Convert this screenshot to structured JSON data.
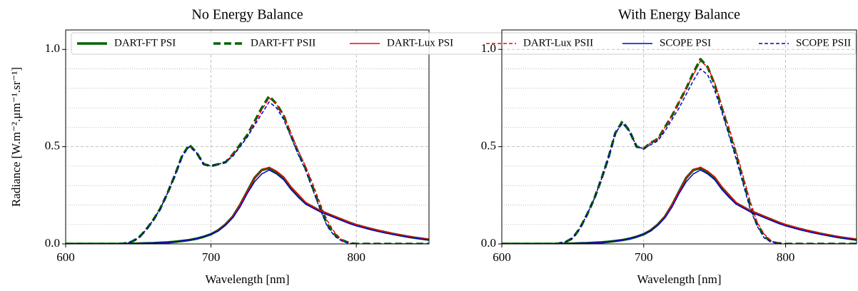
{
  "chart_data": [
    {
      "type": "line",
      "title": "No Energy Balance",
      "xlabel": "Wavelength [nm]",
      "ylabel": "Radiance [W.m⁻².μm⁻¹.sr⁻¹]",
      "xlim": [
        600,
        850
      ],
      "ylim": [
        0,
        1.1
      ],
      "xticks": [
        600,
        700,
        800
      ],
      "yticks": [
        {
          "value": 0,
          "label": "0.0"
        },
        {
          "value": 0.5,
          "label": "0.5"
        },
        {
          "value": 1.0,
          "label": "1.0"
        }
      ],
      "yminorticks": [
        0.1,
        0.2,
        0.3,
        0.4,
        0.6,
        0.7,
        0.8,
        0.9
      ],
      "grid": true,
      "legend": "upper center",
      "x": [
        600,
        605,
        610,
        615,
        620,
        625,
        630,
        635,
        640,
        645,
        650,
        655,
        660,
        665,
        670,
        675,
        680,
        685,
        690,
        695,
        700,
        705,
        710,
        715,
        720,
        725,
        730,
        735,
        740,
        745,
        750,
        755,
        760,
        765,
        770,
        775,
        780,
        785,
        790,
        795,
        800,
        805,
        810,
        815,
        820,
        825,
        830,
        835,
        840,
        845,
        850
      ],
      "series": [
        {
          "name": "DART-FT PSI",
          "color": "#006400",
          "dash": false,
          "width": 3.5,
          "values": [
            0,
            0,
            0,
            0,
            0,
            0,
            0,
            0,
            0,
            0.001,
            0.002,
            0.003,
            0.004,
            0.006,
            0.008,
            0.011,
            0.015,
            0.02,
            0.027,
            0.037,
            0.05,
            0.07,
            0.1,
            0.14,
            0.2,
            0.27,
            0.34,
            0.38,
            0.39,
            0.37,
            0.34,
            0.29,
            0.25,
            0.21,
            0.19,
            0.17,
            0.155,
            0.14,
            0.125,
            0.11,
            0.097,
            0.087,
            0.077,
            0.068,
            0.06,
            0.052,
            0.045,
            0.038,
            0.032,
            0.027,
            0.022
          ]
        },
        {
          "name": "DART-FT PSII",
          "color": "#006400",
          "dash": true,
          "width": 3.5,
          "values": [
            0,
            0,
            0,
            0,
            0,
            0,
            0,
            0,
            0.002,
            0.01,
            0.03,
            0.07,
            0.12,
            0.18,
            0.26,
            0.35,
            0.45,
            0.51,
            0.47,
            0.41,
            0.4,
            0.41,
            0.42,
            0.46,
            0.51,
            0.56,
            0.63,
            0.7,
            0.76,
            0.72,
            0.66,
            0.56,
            0.47,
            0.39,
            0.29,
            0.19,
            0.1,
            0.05,
            0.02,
            0.005,
            0,
            0,
            0,
            0,
            0,
            0,
            0,
            0,
            0,
            0,
            0
          ]
        },
        {
          "name": "DART-Lux PSI",
          "color": "#ff0000",
          "dash": false,
          "width": 1.5,
          "values": [
            0,
            0,
            0,
            0,
            0,
            0,
            0,
            0,
            0,
            0.001,
            0.002,
            0.003,
            0.004,
            0.006,
            0.008,
            0.011,
            0.015,
            0.02,
            0.027,
            0.037,
            0.05,
            0.07,
            0.1,
            0.14,
            0.2,
            0.27,
            0.34,
            0.38,
            0.395,
            0.375,
            0.345,
            0.295,
            0.255,
            0.215,
            0.192,
            0.172,
            0.157,
            0.142,
            0.127,
            0.112,
            0.099,
            0.089,
            0.079,
            0.07,
            0.062,
            0.054,
            0.047,
            0.04,
            0.034,
            0.029,
            0.024
          ]
        },
        {
          "name": "DART-Lux PSII",
          "color": "#ff0000",
          "dash": true,
          "width": 1.5,
          "values": [
            0,
            0,
            0,
            0,
            0,
            0,
            0,
            0,
            0.002,
            0.01,
            0.03,
            0.07,
            0.12,
            0.18,
            0.26,
            0.35,
            0.45,
            0.5,
            0.47,
            0.41,
            0.4,
            0.41,
            0.42,
            0.46,
            0.5,
            0.55,
            0.62,
            0.69,
            0.75,
            0.72,
            0.66,
            0.57,
            0.48,
            0.4,
            0.31,
            0.21,
            0.12,
            0.06,
            0.02,
            0.005,
            0,
            0,
            0,
            0,
            0,
            0,
            0,
            0,
            0,
            0,
            0
          ]
        },
        {
          "name": "SCOPE PSI",
          "color": "#0000cd",
          "dash": false,
          "width": 1.5,
          "values": [
            0,
            0,
            0,
            0,
            0,
            0,
            0,
            0,
            0,
            0.001,
            0.002,
            0.003,
            0.004,
            0.006,
            0.008,
            0.011,
            0.015,
            0.02,
            0.027,
            0.037,
            0.05,
            0.068,
            0.097,
            0.135,
            0.19,
            0.26,
            0.32,
            0.36,
            0.38,
            0.36,
            0.33,
            0.28,
            0.24,
            0.205,
            0.185,
            0.165,
            0.15,
            0.135,
            0.12,
            0.105,
            0.093,
            0.083,
            0.073,
            0.064,
            0.056,
            0.049,
            0.042,
            0.036,
            0.03,
            0.025,
            0.02
          ]
        },
        {
          "name": "SCOPE PSII",
          "color": "#0000cd",
          "dash": true,
          "width": 1.5,
          "values": [
            0,
            0,
            0,
            0,
            0,
            0,
            0,
            0,
            0.002,
            0.01,
            0.03,
            0.07,
            0.12,
            0.18,
            0.26,
            0.35,
            0.45,
            0.5,
            0.47,
            0.41,
            0.4,
            0.41,
            0.42,
            0.45,
            0.5,
            0.55,
            0.61,
            0.67,
            0.73,
            0.7,
            0.64,
            0.55,
            0.46,
            0.38,
            0.28,
            0.18,
            0.09,
            0.04,
            0.015,
            0.004,
            0,
            0,
            0,
            0,
            0,
            0,
            0,
            0,
            0,
            0,
            0
          ]
        }
      ]
    },
    {
      "type": "line",
      "title": "With Energy Balance",
      "xlabel": "Wavelength [nm]",
      "xlim": [
        600,
        850
      ],
      "ylim": [
        0,
        1.1
      ],
      "xticks": [
        600,
        700,
        800
      ],
      "yticks": [
        {
          "value": 0,
          "label": "0.0"
        },
        {
          "value": 0.5,
          "label": "0.5"
        },
        {
          "value": 1.0,
          "label": "1.0"
        }
      ],
      "yminorticks": [
        0.1,
        0.2,
        0.3,
        0.4,
        0.6,
        0.7,
        0.8,
        0.9
      ],
      "grid": true,
      "x": [
        600,
        605,
        610,
        615,
        620,
        625,
        630,
        635,
        640,
        645,
        650,
        655,
        660,
        665,
        670,
        675,
        680,
        685,
        690,
        695,
        700,
        705,
        710,
        715,
        720,
        725,
        730,
        735,
        740,
        745,
        750,
        755,
        760,
        765,
        770,
        775,
        780,
        785,
        790,
        795,
        800,
        805,
        810,
        815,
        820,
        825,
        830,
        835,
        840,
        845,
        850
      ],
      "series": [
        {
          "color": "#006400",
          "dash": false,
          "width": 3.5,
          "values": [
            0,
            0,
            0,
            0,
            0,
            0,
            0,
            0,
            0,
            0.001,
            0.002,
            0.003,
            0.004,
            0.006,
            0.008,
            0.011,
            0.015,
            0.02,
            0.027,
            0.037,
            0.05,
            0.07,
            0.1,
            0.14,
            0.2,
            0.27,
            0.34,
            0.38,
            0.39,
            0.37,
            0.34,
            0.29,
            0.25,
            0.21,
            0.19,
            0.17,
            0.155,
            0.14,
            0.125,
            0.11,
            0.097,
            0.087,
            0.077,
            0.068,
            0.06,
            0.052,
            0.045,
            0.038,
            0.032,
            0.027,
            0.022
          ]
        },
        {
          "color": "#006400",
          "dash": true,
          "width": 3.5,
          "values": [
            0,
            0,
            0,
            0,
            0,
            0,
            0,
            0,
            0.002,
            0.01,
            0.03,
            0.08,
            0.15,
            0.23,
            0.33,
            0.44,
            0.57,
            0.63,
            0.58,
            0.5,
            0.49,
            0.52,
            0.54,
            0.6,
            0.66,
            0.73,
            0.8,
            0.88,
            0.95,
            0.91,
            0.82,
            0.7,
            0.58,
            0.46,
            0.33,
            0.2,
            0.1,
            0.04,
            0.01,
            0.003,
            0,
            0,
            0,
            0,
            0,
            0,
            0,
            0,
            0,
            0,
            0
          ]
        },
        {
          "color": "#ff0000",
          "dash": false,
          "width": 1.5,
          "values": [
            0,
            0,
            0,
            0,
            0,
            0,
            0,
            0,
            0,
            0.001,
            0.002,
            0.003,
            0.004,
            0.006,
            0.008,
            0.011,
            0.015,
            0.02,
            0.027,
            0.037,
            0.05,
            0.07,
            0.1,
            0.14,
            0.2,
            0.27,
            0.34,
            0.38,
            0.395,
            0.375,
            0.345,
            0.295,
            0.255,
            0.215,
            0.192,
            0.172,
            0.157,
            0.142,
            0.127,
            0.112,
            0.099,
            0.089,
            0.079,
            0.07,
            0.062,
            0.054,
            0.047,
            0.04,
            0.034,
            0.029,
            0.024
          ]
        },
        {
          "color": "#ff0000",
          "dash": true,
          "width": 1.5,
          "values": [
            0,
            0,
            0,
            0,
            0,
            0,
            0,
            0,
            0.002,
            0.01,
            0.03,
            0.08,
            0.15,
            0.23,
            0.33,
            0.44,
            0.57,
            0.62,
            0.58,
            0.5,
            0.49,
            0.52,
            0.54,
            0.6,
            0.66,
            0.73,
            0.8,
            0.87,
            0.94,
            0.91,
            0.83,
            0.71,
            0.6,
            0.48,
            0.35,
            0.22,
            0.11,
            0.05,
            0.015,
            0.004,
            0,
            0,
            0,
            0,
            0,
            0,
            0,
            0,
            0,
            0,
            0
          ]
        },
        {
          "color": "#0000cd",
          "dash": false,
          "width": 1.5,
          "values": [
            0,
            0,
            0,
            0,
            0,
            0,
            0,
            0,
            0,
            0.001,
            0.002,
            0.003,
            0.004,
            0.006,
            0.008,
            0.011,
            0.015,
            0.02,
            0.027,
            0.037,
            0.05,
            0.068,
            0.097,
            0.135,
            0.19,
            0.26,
            0.32,
            0.36,
            0.38,
            0.36,
            0.33,
            0.28,
            0.24,
            0.205,
            0.185,
            0.165,
            0.15,
            0.135,
            0.12,
            0.105,
            0.093,
            0.083,
            0.073,
            0.064,
            0.056,
            0.049,
            0.042,
            0.036,
            0.03,
            0.025,
            0.02
          ]
        },
        {
          "color": "#0000cd",
          "dash": true,
          "width": 1.5,
          "values": [
            0,
            0,
            0,
            0,
            0,
            0,
            0,
            0,
            0.002,
            0.01,
            0.03,
            0.08,
            0.15,
            0.23,
            0.33,
            0.44,
            0.57,
            0.62,
            0.58,
            0.5,
            0.49,
            0.51,
            0.53,
            0.58,
            0.64,
            0.7,
            0.77,
            0.84,
            0.9,
            0.87,
            0.79,
            0.68,
            0.56,
            0.44,
            0.31,
            0.18,
            0.09,
            0.03,
            0.01,
            0.003,
            0,
            0,
            0,
            0,
            0,
            0,
            0,
            0,
            0,
            0,
            0
          ]
        }
      ]
    }
  ]
}
